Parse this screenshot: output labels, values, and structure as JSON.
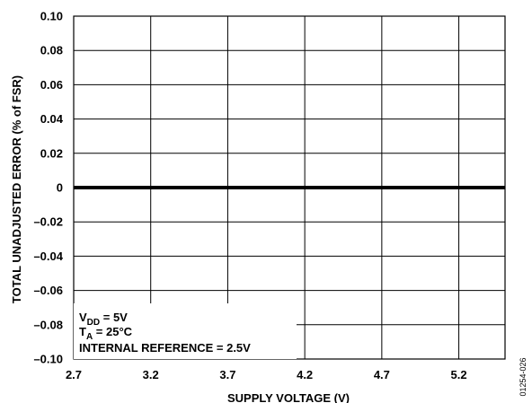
{
  "chart_data": {
    "type": "line",
    "xlabel": "SUPPLY VOLTAGE (V)",
    "ylabel": "TOTAL UNADJUSTED ERROR (% of FSR)",
    "xlim": [
      2.7,
      5.5
    ],
    "ylim": [
      -0.1,
      0.1
    ],
    "x_ticks": [
      2.7,
      3.2,
      3.7,
      4.2,
      4.7,
      5.2
    ],
    "x_tick_labels": [
      "2.7",
      "3.2",
      "3.7",
      "4.2",
      "4.7",
      "5.2"
    ],
    "y_ticks": [
      0.1,
      0.08,
      0.06,
      0.04,
      0.02,
      0,
      -0.02,
      -0.04,
      -0.06,
      -0.08,
      -0.1
    ],
    "y_tick_labels": [
      "0.10",
      "0.08",
      "0.06",
      "0.04",
      "0.02",
      "0",
      "–0.02",
      "–0.04",
      "–0.06",
      "–0.08",
      "–0.10"
    ],
    "grid": true,
    "series": [
      {
        "x": [
          2.7,
          5.5
        ],
        "values": [
          0,
          0
        ]
      }
    ],
    "annotation": {
      "vdd_main": "V",
      "vdd_sub": "DD",
      "vdd_rest": " = 5V",
      "ta_main": "T",
      "ta_sub": "A",
      "ta_rest": " = 25°C",
      "ref": "INTERNAL REFERENCE = 2.5V"
    },
    "figure_id": "01254-026",
    "colors": {
      "line": "#000000",
      "grid": "#000000",
      "background": "#ffffff"
    }
  }
}
